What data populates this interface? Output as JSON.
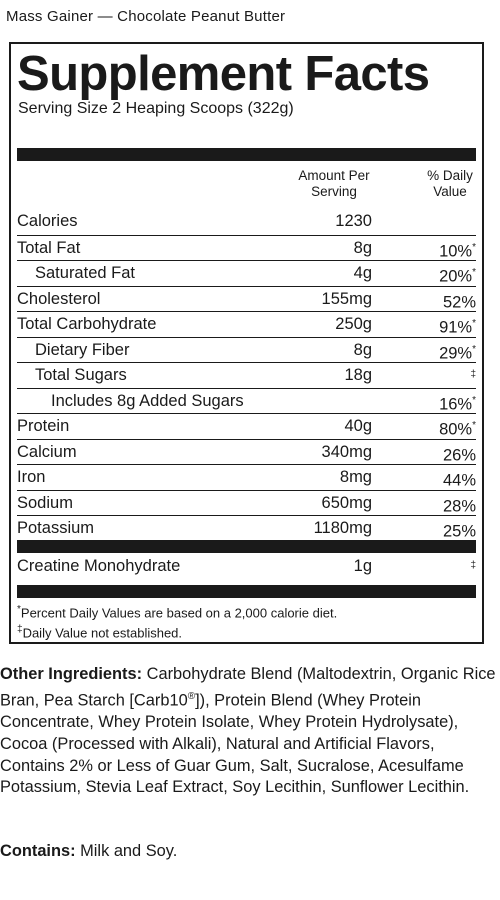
{
  "product_name": "Mass Gainer — Chocolate Peanut Butter",
  "panel": {
    "title": "Supplement Facts",
    "serving_size": "Serving Size 2 Heaping Scoops (322g)",
    "column_amount": "Amount Per Serving",
    "column_dv": "% Daily Value",
    "rows": [
      {
        "name": "Calories",
        "amount": "1230",
        "dv": "",
        "mark": ""
      },
      {
        "name": "Total Fat",
        "amount": "8g",
        "dv": "10%",
        "mark": "*"
      },
      {
        "name": "Saturated Fat",
        "amount": "4g",
        "dv": "20%",
        "mark": "*"
      },
      {
        "name": "Cholesterol",
        "amount": "155mg",
        "dv": "52%",
        "mark": ""
      },
      {
        "name": "Total Carbohydrate",
        "amount": "250g",
        "dv": "91%",
        "mark": "*"
      },
      {
        "name": "Dietary Fiber",
        "amount": "8g",
        "dv": "29%",
        "mark": "*"
      },
      {
        "name": "Total Sugars",
        "amount": "18g",
        "dv": "",
        "mark": "‡"
      },
      {
        "name": "Includes 8g Added Sugars",
        "amount": "",
        "dv": "16%",
        "mark": "*"
      },
      {
        "name": "Protein",
        "amount": "40g",
        "dv": "80%",
        "mark": "*"
      },
      {
        "name": "Calcium",
        "amount": "340mg",
        "dv": "26%",
        "mark": ""
      },
      {
        "name": "Iron",
        "amount": "8mg",
        "dv": "44%",
        "mark": ""
      },
      {
        "name": "Sodium",
        "amount": "650mg",
        "dv": "28%",
        "mark": ""
      },
      {
        "name": "Potassium",
        "amount": "1180mg",
        "dv": "25%",
        "mark": ""
      }
    ],
    "proprietary": {
      "name": "Creatine Monohydrate",
      "amount": "1g",
      "mark": "‡"
    },
    "footnote_percent_mark": "*",
    "footnote_percent": "Percent Daily Values are based on a 2,000 calorie diet.",
    "footnote_dagger_mark": "‡",
    "footnote_dagger": "Daily Value not established."
  },
  "other_ingredients_label": "Other Ingredients:",
  "other_ingredients_part1": " Carbohydrate Blend (Maltodextrin, Organic Rice Bran, Pea Starch [Carb10",
  "other_ingredients_reg": "®",
  "other_ingredients_part2": "]), Protein Blend (Whey Protein Concentrate, Whey Protein Isolate, Whey Protein Hydrolysate), Cocoa (Processed with Alkali), Natural and Artificial Flavors, Contains 2% or Less of Guar Gum, Salt, Sucralose, Acesulfame Potassium, Stevia Leaf Extract, Soy Lecithin, Sunflower Lecithin.",
  "contains_label": "Contains:",
  "contains_text": " Milk and Soy."
}
